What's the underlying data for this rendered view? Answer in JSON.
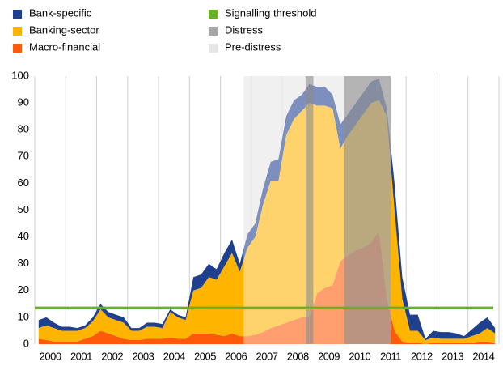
{
  "chart_data": {
    "type": "stacked_area",
    "x": [
      2000.125,
      2000.375,
      2000.625,
      2000.875,
      2001.125,
      2001.375,
      2001.625,
      2001.875,
      2002.125,
      2002.375,
      2002.625,
      2002.875,
      2003.125,
      2003.375,
      2003.625,
      2003.875,
      2004.125,
      2004.375,
      2004.625,
      2004.875,
      2005.125,
      2005.375,
      2005.625,
      2005.875,
      2006.125,
      2006.375,
      2006.625,
      2006.875,
      2007.125,
      2007.375,
      2007.625,
      2007.875,
      2008.125,
      2008.375,
      2008.625,
      2008.875,
      2009.125,
      2009.375,
      2009.625,
      2009.875,
      2010.125,
      2010.375,
      2010.625,
      2010.875,
      2011.125,
      2011.375,
      2011.625,
      2011.875,
      2012.125,
      2012.375,
      2012.625,
      2012.875,
      2013.125,
      2013.375,
      2013.625,
      2013.875,
      2014.125,
      2014.375,
      2014.625,
      2014.875
    ],
    "series": [
      {
        "name": "Macro-financial",
        "color": "#ff5a0a",
        "values": [
          2,
          1.5,
          1,
          1,
          1,
          1,
          2,
          3,
          5,
          4,
          3,
          2,
          1.5,
          1.5,
          2,
          2,
          2,
          2.5,
          2,
          2,
          4,
          4,
          4,
          3.5,
          3,
          4,
          3,
          3,
          3.5,
          4.5,
          6,
          7,
          8,
          9,
          10,
          10,
          19,
          21,
          22,
          31,
          33,
          35,
          36,
          38,
          42,
          17,
          5,
          1,
          0.5,
          0.5,
          0,
          0.5,
          0.5,
          0.5,
          0.5,
          0.5,
          0.5,
          1,
          1,
          0.5
        ]
      },
      {
        "name": "Banking-sector",
        "color": "#ffb400",
        "values": [
          4,
          5.5,
          5,
          4,
          4,
          4,
          4,
          5.5,
          8,
          6,
          6,
          6,
          3.5,
          3.5,
          4.5,
          4.5,
          4,
          9.5,
          8,
          7,
          16,
          17,
          21,
          20.5,
          26,
          30,
          24,
          33,
          36.5,
          47.5,
          55,
          54,
          70,
          75,
          77,
          80,
          70,
          68,
          66,
          42,
          45,
          47,
          50,
          52,
          49,
          68,
          45,
          16,
          4.5,
          4.5,
          1.5,
          2,
          1.5,
          1.5,
          1.5,
          1.5,
          2.5,
          3,
          5,
          3.5
        ]
      },
      {
        "name": "Bank-specific",
        "color": "#1f3f8f",
        "values": [
          3,
          3,
          2,
          1.5,
          1.5,
          1,
          1,
          1.5,
          2,
          2,
          2,
          2,
          1,
          1,
          1.5,
          1.5,
          1.5,
          1,
          1,
          1,
          5,
          5,
          5,
          4,
          5,
          5,
          3,
          5,
          5,
          6,
          7,
          8,
          7,
          7,
          6,
          7,
          7,
          7,
          5,
          9,
          8,
          8,
          8,
          8,
          8,
          3,
          10,
          8,
          6,
          6,
          0.5,
          2.5,
          2.5,
          2.5,
          2,
          1,
          2.5,
          4,
          4,
          2
        ]
      }
    ],
    "threshold": {
      "name": "Signalling threshold",
      "value": 13.5,
      "color": "#6ab023"
    },
    "regions": {
      "distress": {
        "name": "Distress",
        "color": "#8c8c8c",
        "periods": [
          [
            2008.75,
            2009
          ],
          [
            2010,
            2011.5
          ]
        ]
      },
      "pre_distress": {
        "name": "Pre-distress",
        "color": "#e6e6e6",
        "periods": [
          [
            2006.75,
            2011.5
          ]
        ]
      }
    },
    "xlim": [
      2000,
      2015
    ],
    "xticks": [
      2000,
      2001,
      2002,
      2003,
      2004,
      2005,
      2006,
      2007,
      2008,
      2009,
      2010,
      2011,
      2012,
      2013,
      2014
    ],
    "ylim": [
      0,
      100
    ],
    "yticks": [
      0,
      10,
      20,
      30,
      40,
      50,
      60,
      70,
      80,
      90,
      100
    ],
    "grid": true
  }
}
